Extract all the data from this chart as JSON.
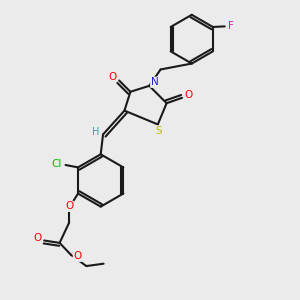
{
  "background_color": "#ebebeb",
  "bond_color": "#1a1a1a",
  "atom_colors": {
    "O": "#ff0000",
    "N": "#2222cc",
    "S": "#bbbb00",
    "Cl": "#00bb00",
    "F": "#ee00ee",
    "H": "#22aaaa",
    "C": "#1a1a1a"
  },
  "figsize": [
    3.0,
    3.0
  ],
  "dpi": 100
}
